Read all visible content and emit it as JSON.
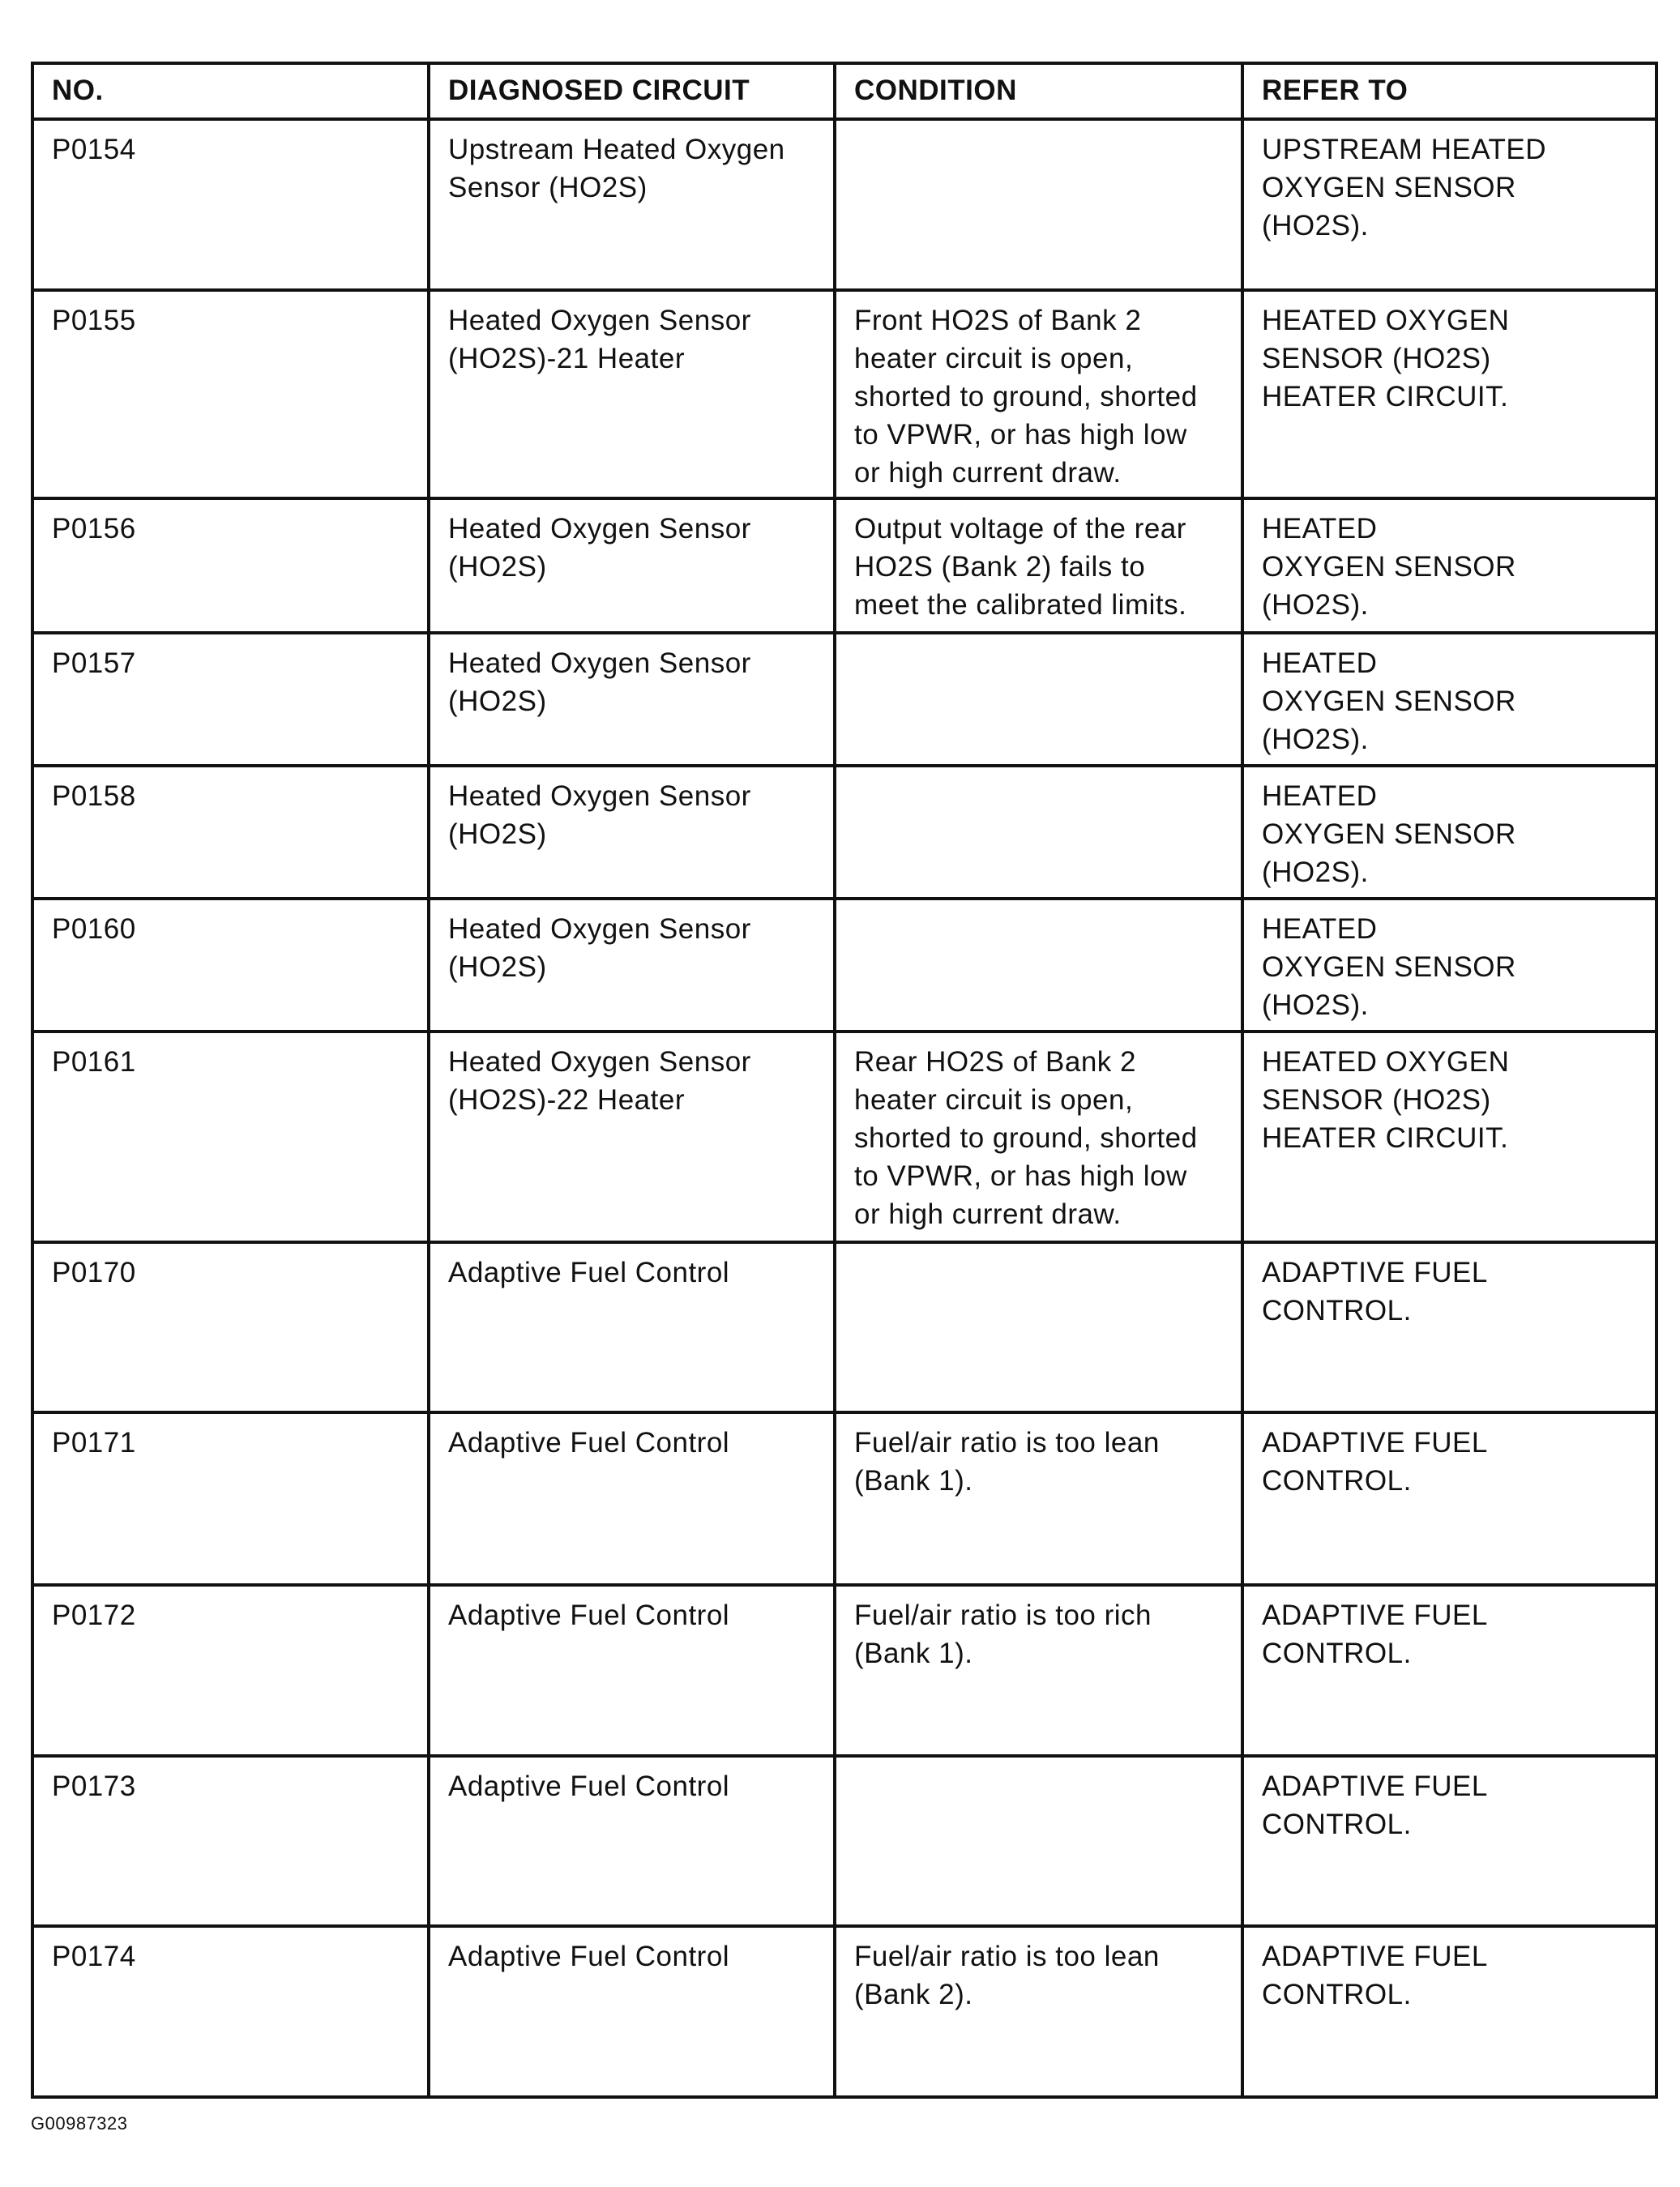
{
  "headers": [
    "NO.",
    "DIAGNOSED CIRCUIT",
    "CONDITION",
    "REFER TO"
  ],
  "rows": [
    {
      "no": "P0154",
      "circuit": "Upstream Heated Oxygen\nSensor (HO2S)",
      "condition": "",
      "refer": "UPSTREAM HEATED\nOXYGEN SENSOR\n(HO2S)."
    },
    {
      "no": "P0155",
      "circuit": "Heated Oxygen Sensor\n(HO2S)-21 Heater",
      "condition": "Front HO2S of Bank 2\nheater circuit is open,\nshorted to ground, shorted\nto VPWR, or has high low\nor high current draw.",
      "refer": "HEATED OXYGEN\nSENSOR (HO2S)\nHEATER CIRCUIT."
    },
    {
      "no": "P0156",
      "circuit": "Heated Oxygen Sensor\n(HO2S)",
      "condition": "Output voltage of the rear\nHO2S (Bank 2) fails to\nmeet the calibrated limits.",
      "refer": "HEATED\nOXYGEN SENSOR\n(HO2S)."
    },
    {
      "no": "P0157",
      "circuit": "Heated Oxygen Sensor\n(HO2S)",
      "condition": "",
      "refer": "HEATED\nOXYGEN SENSOR\n(HO2S)."
    },
    {
      "no": "P0158",
      "circuit": "Heated Oxygen Sensor\n(HO2S)",
      "condition": "",
      "refer": "HEATED\nOXYGEN SENSOR\n(HO2S)."
    },
    {
      "no": "P0160",
      "circuit": "Heated Oxygen Sensor\n(HO2S)",
      "condition": "",
      "refer": "HEATED\nOXYGEN SENSOR\n(HO2S)."
    },
    {
      "no": "P0161",
      "circuit": "Heated Oxygen Sensor\n(HO2S)-22 Heater",
      "condition": "Rear HO2S of Bank 2\nheater circuit is open,\nshorted to ground, shorted\nto VPWR, or has high low\nor high current draw.",
      "refer": "HEATED OXYGEN\nSENSOR (HO2S)\nHEATER CIRCUIT."
    },
    {
      "no": "P0170",
      "circuit": "Adaptive Fuel Control",
      "condition": "",
      "refer": "ADAPTIVE FUEL\nCONTROL."
    },
    {
      "no": "P0171",
      "circuit": "Adaptive Fuel Control",
      "condition": "Fuel/air ratio is too lean\n(Bank 1).",
      "refer": "ADAPTIVE FUEL\nCONTROL."
    },
    {
      "no": "P0172",
      "circuit": "Adaptive Fuel Control",
      "condition": "Fuel/air ratio is too rich\n(Bank 1).",
      "refer": "ADAPTIVE FUEL\nCONTROL."
    },
    {
      "no": "P0173",
      "circuit": "Adaptive Fuel Control",
      "condition": "",
      "refer": "ADAPTIVE FUEL\nCONTROL."
    },
    {
      "no": "P0174",
      "circuit": "Adaptive Fuel Control",
      "condition": "Fuel/air ratio is too lean\n(Bank 2).",
      "refer": "ADAPTIVE FUEL\nCONTROL."
    }
  ],
  "figure_id": "G00987323"
}
